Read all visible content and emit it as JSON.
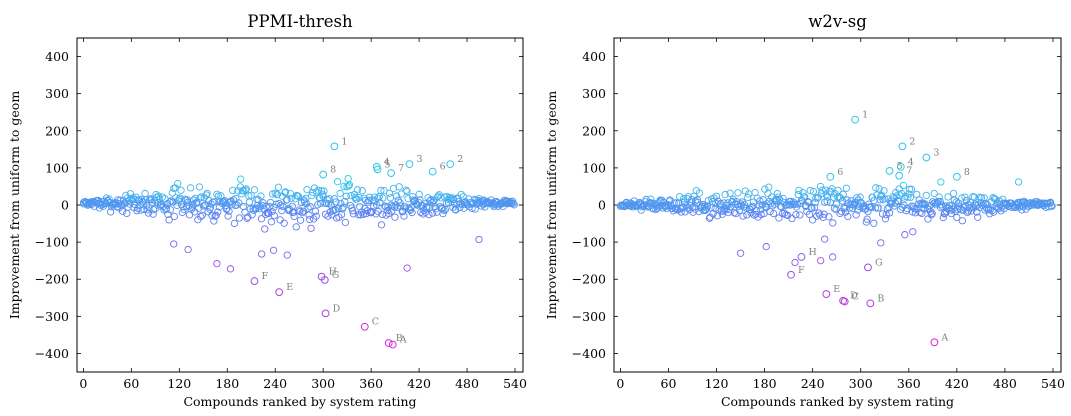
{
  "chart_data": [
    {
      "type": "scatter",
      "title": "PPMI-thresh",
      "xlabel": "Compounds ranked by system rating",
      "ylabel": "Improvement from uniform to geom",
      "xlim": [
        -8,
        550
      ],
      "ylim": [
        -450,
        450
      ],
      "xticks": [
        0,
        60,
        120,
        180,
        240,
        300,
        360,
        420,
        480,
        540
      ],
      "yticks": [
        400,
        300,
        200,
        100,
        0,
        -100,
        -200,
        -300,
        -400
      ],
      "xtick_labels": [
        "0",
        "60",
        "120",
        "180",
        "240",
        "300",
        "360",
        "420",
        "480",
        "540"
      ],
      "ytick_labels": [
        "400",
        "300",
        "200",
        "100",
        "0",
        "−100",
        "−200",
        "−300",
        "−400"
      ],
      "grid": false,
      "marker": "hollow circle",
      "color_scale": "value-dependent: cyan for large positive, blue near zero, purple to magenta for large negative",
      "annotations": [
        {
          "label": "1",
          "x": 314,
          "y": 158
        },
        {
          "label": "2",
          "x": 459,
          "y": 110
        },
        {
          "label": "3",
          "x": 408,
          "y": 110
        },
        {
          "label": "4",
          "x": 367,
          "y": 103
        },
        {
          "label": "5",
          "x": 368,
          "y": 96
        },
        {
          "label": "6",
          "x": 437,
          "y": 90
        },
        {
          "label": "7",
          "x": 385,
          "y": 86
        },
        {
          "label": "8",
          "x": 300,
          "y": 82
        },
        {
          "label": "A",
          "x": 387,
          "y": -376
        },
        {
          "label": "B",
          "x": 382,
          "y": -372
        },
        {
          "label": "C",
          "x": 352,
          "y": -328
        },
        {
          "label": "D",
          "x": 303,
          "y": -292
        },
        {
          "label": "E",
          "x": 245,
          "y": -235
        },
        {
          "label": "F",
          "x": 214,
          "y": -205
        },
        {
          "label": "G",
          "x": 302,
          "y": -202
        },
        {
          "label": "H",
          "x": 298,
          "y": -193
        }
      ],
      "outliers": [
        {
          "x": 113,
          "y": -105
        },
        {
          "x": 131,
          "y": -120
        },
        {
          "x": 167,
          "y": -158
        },
        {
          "x": 184,
          "y": -172
        },
        {
          "x": 223,
          "y": -132
        },
        {
          "x": 238,
          "y": -122
        },
        {
          "x": 255,
          "y": -135
        },
        {
          "x": 405,
          "y": -170
        },
        {
          "x": 495,
          "y": -93
        }
      ],
      "bulk": {
        "n": 540,
        "center": 5,
        "peak_spread": 30,
        "seed": 7
      }
    },
    {
      "type": "scatter",
      "title": "w2v-sg",
      "xlabel": "Compounds ranked by system rating",
      "ylabel": "Improvement from uniform to geom",
      "xlim": [
        -8,
        550
      ],
      "ylim": [
        -450,
        450
      ],
      "xticks": [
        0,
        60,
        120,
        180,
        240,
        300,
        360,
        420,
        480,
        540
      ],
      "yticks": [
        400,
        300,
        200,
        100,
        0,
        -100,
        -200,
        -300,
        -400
      ],
      "xtick_labels": [
        "0",
        "60",
        "120",
        "180",
        "240",
        "300",
        "360",
        "420",
        "480",
        "540"
      ],
      "ytick_labels": [
        "400",
        "300",
        "200",
        "100",
        "0",
        "−100",
        "−200",
        "−300",
        "−400"
      ],
      "grid": false,
      "marker": "hollow circle",
      "color_scale": "value-dependent: cyan for large positive, blue near zero, purple to magenta for large negative",
      "annotations": [
        {
          "label": "1",
          "x": 293,
          "y": 230
        },
        {
          "label": "2",
          "x": 352,
          "y": 158
        },
        {
          "label": "3",
          "x": 382,
          "y": 128
        },
        {
          "label": "4",
          "x": 350,
          "y": 103
        },
        {
          "label": "5",
          "x": 336,
          "y": 92
        },
        {
          "label": "6",
          "x": 262,
          "y": 76
        },
        {
          "label": "7",
          "x": 348,
          "y": 79
        },
        {
          "label": "8",
          "x": 420,
          "y": 76
        },
        {
          "label": "A",
          "x": 392,
          "y": -370
        },
        {
          "label": "B",
          "x": 312,
          "y": -265
        },
        {
          "label": "C",
          "x": 280,
          "y": -260
        },
        {
          "label": "D",
          "x": 278,
          "y": -258
        },
        {
          "label": "E",
          "x": 257,
          "y": -240
        },
        {
          "label": "F",
          "x": 213,
          "y": -188
        },
        {
          "label": "G",
          "x": 309,
          "y": -168
        },
        {
          "label": "H",
          "x": 226,
          "y": -140
        }
      ],
      "outliers": [
        {
          "x": 150,
          "y": -130
        },
        {
          "x": 182,
          "y": -112
        },
        {
          "x": 218,
          "y": -155
        },
        {
          "x": 250,
          "y": -150
        },
        {
          "x": 255,
          "y": -92
        },
        {
          "x": 265,
          "y": -140
        },
        {
          "x": 325,
          "y": -102
        },
        {
          "x": 355,
          "y": -80
        },
        {
          "x": 365,
          "y": -72
        },
        {
          "x": 400,
          "y": 62
        },
        {
          "x": 497,
          "y": 62
        }
      ],
      "bulk": {
        "n": 540,
        "center": 0,
        "peak_spread": 25,
        "seed": 19
      }
    }
  ]
}
